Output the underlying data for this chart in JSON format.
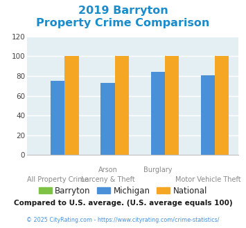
{
  "title_line1": "2019 Barryton",
  "title_line2": "Property Crime Comparison",
  "x_labels_top": [
    "",
    "Arson",
    "Burglary",
    ""
  ],
  "x_labels_bottom": [
    "All Property Crime",
    "Larceny & Theft",
    "",
    "Motor Vehicle Theft"
  ],
  "series": {
    "Barryton": [
      0,
      0,
      0,
      0
    ],
    "Michigan": [
      75,
      73,
      84,
      81
    ],
    "National": [
      100,
      100,
      100,
      100
    ]
  },
  "colors": {
    "Barryton": "#7dc242",
    "Michigan": "#4a90d9",
    "National": "#f5a623"
  },
  "ylim": [
    0,
    120
  ],
  "yticks": [
    0,
    20,
    40,
    60,
    80,
    100,
    120
  ],
  "title_color": "#1a8ccc",
  "title_fontsize": 11.5,
  "axis_bg_color": "#e4eff4",
  "fig_bg_color": "#ffffff",
  "footnote1": "Compared to U.S. average. (U.S. average equals 100)",
  "footnote2": "© 2025 CityRating.com - https://www.cityrating.com/crime-statistics/",
  "footnote1_color": "#1a1a1a",
  "footnote2_color": "#4a90d9",
  "grid_color": "#ffffff",
  "bar_width": 0.28
}
